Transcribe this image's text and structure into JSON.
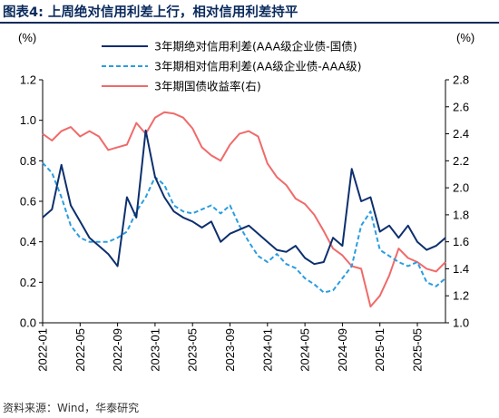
{
  "header": {
    "title": "图表4:  上周绝对信用利差上行，相对信用利差持平"
  },
  "footer": {
    "source": "资料来源：Wind，华泰研究"
  },
  "chart_data": {
    "type": "line",
    "left_axis": {
      "unit": "(%)",
      "ylim": [
        0.0,
        1.2
      ],
      "ticks": [
        "0.0",
        "0.2",
        "0.4",
        "0.6",
        "0.8",
        "1.0",
        "1.2"
      ]
    },
    "right_axis": {
      "unit": "(%)",
      "ylim": [
        1.0,
        2.8
      ],
      "ticks": [
        "1.0",
        "1.2",
        "1.4",
        "1.6",
        "1.8",
        "2.0",
        "2.2",
        "2.4",
        "2.6",
        "2.8"
      ]
    },
    "x_range": [
      "2022-01",
      "2025-08"
    ],
    "x_ticks": [
      "2022-01",
      "2022-05",
      "2022-09",
      "2023-01",
      "2023-05",
      "2023-09",
      "2024-01",
      "2024-05",
      "2024-09",
      "2025-01",
      "2025-05"
    ],
    "colors": {
      "absolute": "#0d2f6e",
      "relative": "#2a9de0",
      "yield": "#f06a6a"
    },
    "series": [
      {
        "name": "3年期绝对信用利差(AAA级企业债-国债)",
        "axis": "left",
        "style": "solid",
        "points": [
          [
            "2022-01",
            0.52
          ],
          [
            "2022-02",
            0.56
          ],
          [
            "2022-03",
            0.78
          ],
          [
            "2022-04",
            0.58
          ],
          [
            "2022-05",
            0.5
          ],
          [
            "2022-06",
            0.42
          ],
          [
            "2022-07",
            0.38
          ],
          [
            "2022-08",
            0.34
          ],
          [
            "2022-09",
            0.28
          ],
          [
            "2022-10",
            0.62
          ],
          [
            "2022-11",
            0.52
          ],
          [
            "2022-12",
            0.95
          ],
          [
            "2023-01",
            0.72
          ],
          [
            "2023-02",
            0.62
          ],
          [
            "2023-03",
            0.55
          ],
          [
            "2023-04",
            0.52
          ],
          [
            "2023-05",
            0.5
          ],
          [
            "2023-06",
            0.47
          ],
          [
            "2023-07",
            0.5
          ],
          [
            "2023-08",
            0.4
          ],
          [
            "2023-09",
            0.44
          ],
          [
            "2023-10",
            0.46
          ],
          [
            "2023-11",
            0.48
          ],
          [
            "2023-12",
            0.44
          ],
          [
            "2024-01",
            0.4
          ],
          [
            "2024-02",
            0.36
          ],
          [
            "2024-03",
            0.35
          ],
          [
            "2024-04",
            0.38
          ],
          [
            "2024-05",
            0.32
          ],
          [
            "2024-06",
            0.29
          ],
          [
            "2024-07",
            0.3
          ],
          [
            "2024-08",
            0.42
          ],
          [
            "2024-09",
            0.38
          ],
          [
            "2024-10",
            0.76
          ],
          [
            "2024-11",
            0.6
          ],
          [
            "2024-12",
            0.62
          ],
          [
            "2025-01",
            0.45
          ],
          [
            "2025-02",
            0.48
          ],
          [
            "2025-03",
            0.42
          ],
          [
            "2025-04",
            0.48
          ],
          [
            "2025-05",
            0.4
          ],
          [
            "2025-06",
            0.36
          ],
          [
            "2025-07",
            0.38
          ],
          [
            "2025-08",
            0.42
          ]
        ]
      },
      {
        "name": "3年期相对信用利差(AA级企业债-AAA级)",
        "axis": "left",
        "style": "dashed",
        "points": [
          [
            "2022-01",
            0.79
          ],
          [
            "2022-02",
            0.74
          ],
          [
            "2022-03",
            0.62
          ],
          [
            "2022-04",
            0.48
          ],
          [
            "2022-05",
            0.42
          ],
          [
            "2022-06",
            0.4
          ],
          [
            "2022-07",
            0.4
          ],
          [
            "2022-08",
            0.4
          ],
          [
            "2022-09",
            0.42
          ],
          [
            "2022-10",
            0.45
          ],
          [
            "2022-11",
            0.55
          ],
          [
            "2022-12",
            0.62
          ],
          [
            "2023-01",
            0.72
          ],
          [
            "2023-02",
            0.68
          ],
          [
            "2023-03",
            0.58
          ],
          [
            "2023-04",
            0.55
          ],
          [
            "2023-05",
            0.54
          ],
          [
            "2023-06",
            0.56
          ],
          [
            "2023-07",
            0.58
          ],
          [
            "2023-08",
            0.54
          ],
          [
            "2023-09",
            0.58
          ],
          [
            "2023-10",
            0.48
          ],
          [
            "2023-11",
            0.4
          ],
          [
            "2023-12",
            0.33
          ],
          [
            "2024-01",
            0.3
          ],
          [
            "2024-02",
            0.34
          ],
          [
            "2024-03",
            0.29
          ],
          [
            "2024-04",
            0.27
          ],
          [
            "2024-05",
            0.22
          ],
          [
            "2024-06",
            0.19
          ],
          [
            "2024-07",
            0.15
          ],
          [
            "2024-08",
            0.16
          ],
          [
            "2024-09",
            0.22
          ],
          [
            "2024-10",
            0.28
          ],
          [
            "2024-11",
            0.48
          ],
          [
            "2024-12",
            0.55
          ],
          [
            "2025-01",
            0.36
          ],
          [
            "2025-02",
            0.33
          ],
          [
            "2025-03",
            0.3
          ],
          [
            "2025-04",
            0.28
          ],
          [
            "2025-05",
            0.3
          ],
          [
            "2025-06",
            0.2
          ],
          [
            "2025-07",
            0.18
          ],
          [
            "2025-08",
            0.22
          ]
        ]
      },
      {
        "name": "3年期国债收益率(右)",
        "axis": "right",
        "style": "solid",
        "points": [
          [
            "2022-01",
            2.4
          ],
          [
            "2022-02",
            2.35
          ],
          [
            "2022-03",
            2.42
          ],
          [
            "2022-04",
            2.45
          ],
          [
            "2022-05",
            2.38
          ],
          [
            "2022-06",
            2.42
          ],
          [
            "2022-07",
            2.38
          ],
          [
            "2022-08",
            2.28
          ],
          [
            "2022-09",
            2.3
          ],
          [
            "2022-10",
            2.32
          ],
          [
            "2022-11",
            2.48
          ],
          [
            "2022-12",
            2.4
          ],
          [
            "2023-01",
            2.52
          ],
          [
            "2023-02",
            2.56
          ],
          [
            "2023-03",
            2.55
          ],
          [
            "2023-04",
            2.52
          ],
          [
            "2023-05",
            2.44
          ],
          [
            "2023-06",
            2.3
          ],
          [
            "2023-07",
            2.24
          ],
          [
            "2023-08",
            2.2
          ],
          [
            "2023-09",
            2.32
          ],
          [
            "2023-10",
            2.4
          ],
          [
            "2023-11",
            2.42
          ],
          [
            "2023-12",
            2.38
          ],
          [
            "2024-01",
            2.18
          ],
          [
            "2024-02",
            2.08
          ],
          [
            "2024-03",
            2.02
          ],
          [
            "2024-04",
            1.92
          ],
          [
            "2024-05",
            1.88
          ],
          [
            "2024-06",
            1.8
          ],
          [
            "2024-07",
            1.68
          ],
          [
            "2024-08",
            1.55
          ],
          [
            "2024-09",
            1.5
          ],
          [
            "2024-10",
            1.42
          ],
          [
            "2024-11",
            1.4
          ],
          [
            "2024-12",
            1.12
          ],
          [
            "2025-01",
            1.2
          ],
          [
            "2025-02",
            1.35
          ],
          [
            "2025-03",
            1.55
          ],
          [
            "2025-04",
            1.48
          ],
          [
            "2025-05",
            1.45
          ],
          [
            "2025-06",
            1.4
          ],
          [
            "2025-07",
            1.38
          ],
          [
            "2025-08",
            1.45
          ]
        ]
      }
    ]
  }
}
